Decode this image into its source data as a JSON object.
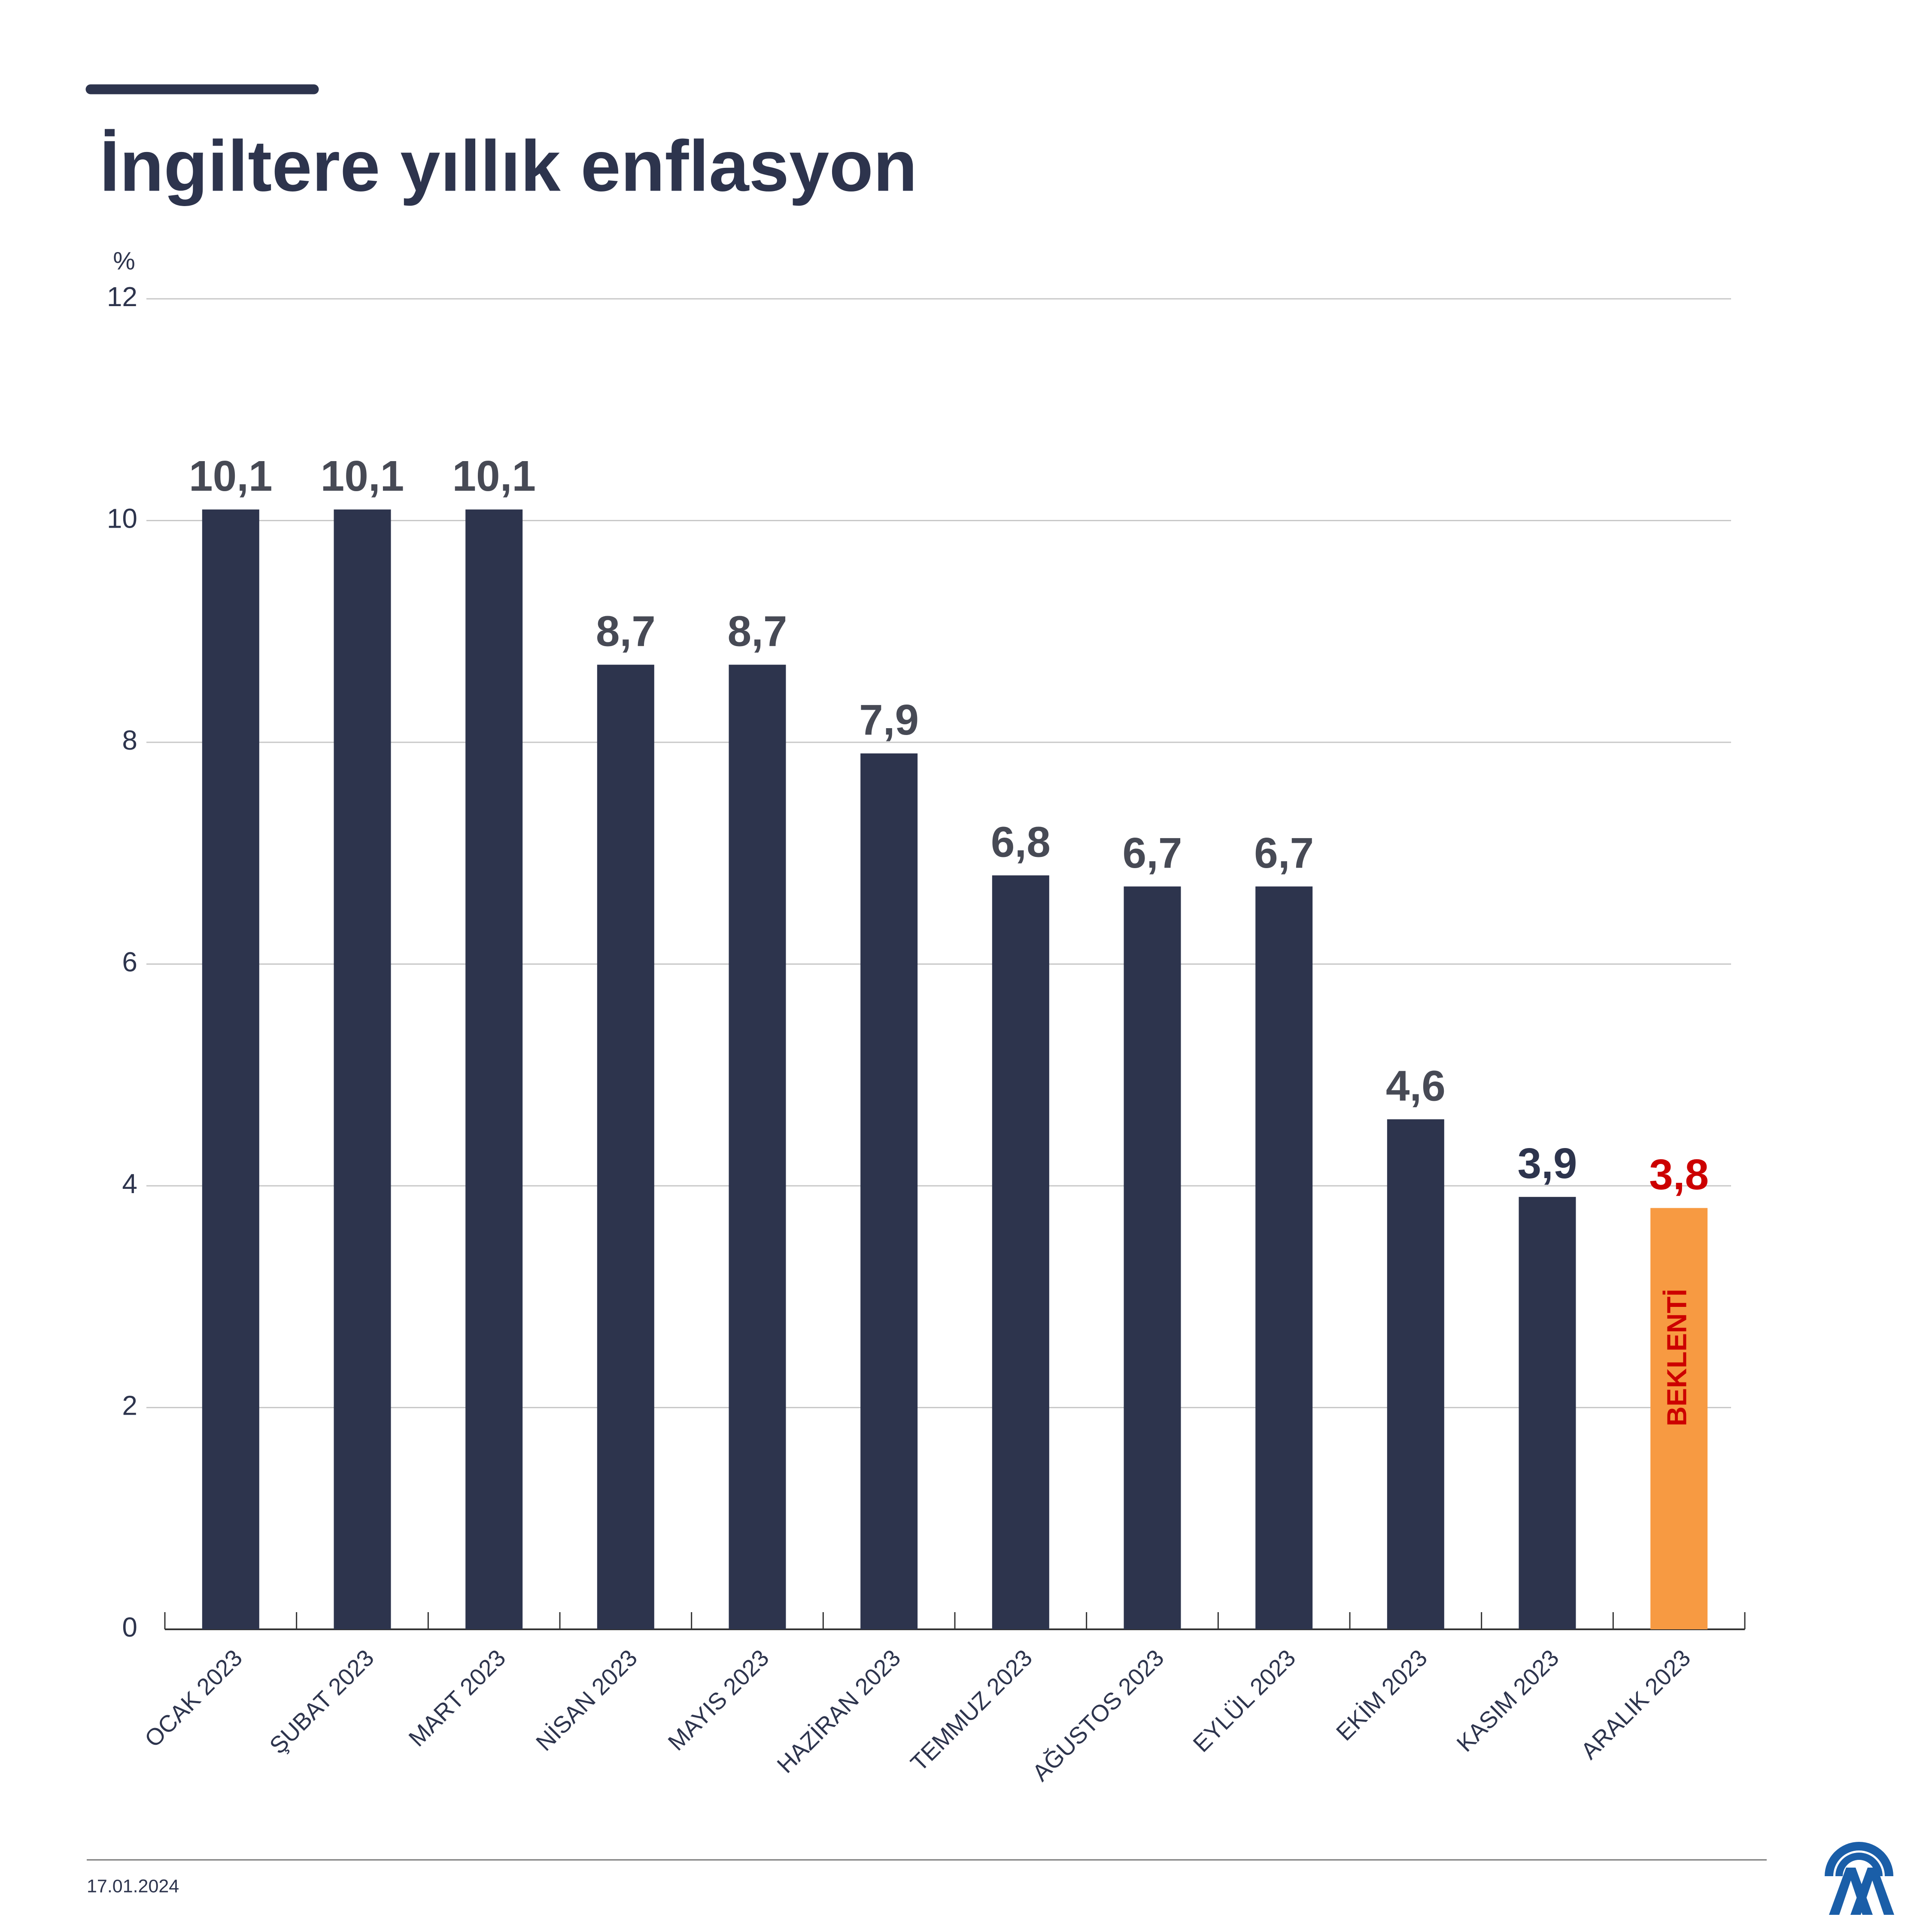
{
  "chart_data": {
    "type": "bar",
    "title": "İngiltere yıllık enflasyon",
    "y_unit": "%",
    "categories": [
      "OCAK 2023",
      "ŞUBAT 2023",
      "MART 2023",
      "NİSAN 2023",
      "MAYIS 2023",
      "HAZİRAN 2023",
      "TEMMUZ 2023",
      "AĞUSTOS 2023",
      "EYLÜL 2023",
      "EKİM 2023",
      "KASIM 2023",
      "ARALIK 2023"
    ],
    "values": [
      10.1,
      10.1,
      10.1,
      8.7,
      8.7,
      7.9,
      6.8,
      6.7,
      6.7,
      4.6,
      3.9,
      3.8
    ],
    "value_labels": [
      "10,1",
      "10,1",
      "10,1",
      "8,7",
      "8,7",
      "7,9",
      "6,8",
      "6,7",
      "6,7",
      "4,6",
      "3,9",
      "3,8"
    ],
    "colors": [
      "#2d344d",
      "#2d344d",
      "#2d344d",
      "#2d344d",
      "#2d344d",
      "#2d344d",
      "#2d344d",
      "#2d344d",
      "#2d344d",
      "#2d344d",
      "#2d344d",
      "#f79a42"
    ],
    "label_colors": [
      "#474a55",
      "#474a55",
      "#474a55",
      "#474a55",
      "#474a55",
      "#474a55",
      "#474a55",
      "#474a55",
      "#474a55",
      "#474a55",
      "#2d344d",
      "#cc0000"
    ],
    "bar_annotation": {
      "index": 11,
      "text": "BEKLENTİ",
      "color": "#cc0000"
    },
    "ylim": [
      0,
      12
    ],
    "yticks": [
      0,
      2,
      4,
      6,
      8,
      10,
      12
    ],
    "grid": true,
    "date": "17.01.2024"
  }
}
